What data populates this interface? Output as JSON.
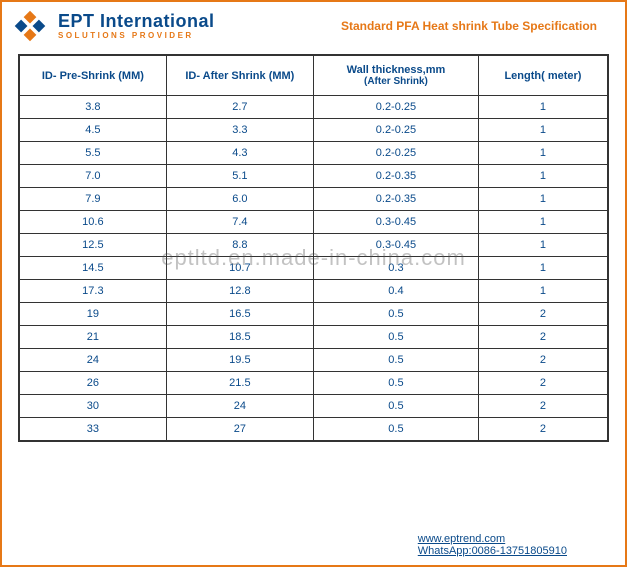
{
  "header": {
    "company_name": "EPT International",
    "tagline": "SOLUTIONS PROVIDER",
    "doc_title": "Standard PFA Heat shrink Tube Specification",
    "logo_colors": {
      "primary": "#e67817",
      "secondary": "#0a4a8a"
    }
  },
  "table": {
    "columns": [
      "ID- Pre-Shrink (MM)",
      "ID- After Shrink (MM)",
      "Wall thickness,mm\n(After Shrink)",
      "Length( meter)"
    ],
    "col_widths_pct": [
      25,
      25,
      28,
      22
    ],
    "rows": [
      [
        "3.8",
        "2.7",
        "0.2-0.25",
        "1"
      ],
      [
        "4.5",
        "3.3",
        "0.2-0.25",
        "1"
      ],
      [
        "5.5",
        "4.3",
        "0.2-0.25",
        "1"
      ],
      [
        "7.0",
        "5.1",
        "0.2-0.35",
        "1"
      ],
      [
        "7.9",
        "6.0",
        "0.2-0.35",
        "1"
      ],
      [
        "10.6",
        "7.4",
        "0.3-0.45",
        "1"
      ],
      [
        "12.5",
        "8.8",
        "0.3-0.45",
        "1"
      ],
      [
        "14.5",
        "10.7",
        "0.3",
        "1"
      ],
      [
        "17.3",
        "12.8",
        "0.4",
        "1"
      ],
      [
        "19",
        "16.5",
        "0.5",
        "2"
      ],
      [
        "21",
        "18.5",
        "0.5",
        "2"
      ],
      [
        "24",
        "19.5",
        "0.5",
        "2"
      ],
      [
        "26",
        "21.5",
        "0.5",
        "2"
      ],
      [
        "30",
        "24",
        "0.5",
        "2"
      ],
      [
        "33",
        "27",
        "0.5",
        "2"
      ]
    ],
    "header_text_color": "#0a4a8a",
    "cell_text_color": "#0a4a8a",
    "border_color": "#333333",
    "header_fontsize": 11,
    "cell_fontsize": 11
  },
  "footer": {
    "website_label": "www.eptrend.com",
    "whatsapp_label": "WhatsApp:0086-13751805910"
  },
  "watermark": "eptltd.en.made-in-china.com",
  "colors": {
    "brand_orange": "#e67817",
    "brand_blue": "#0a4a8a",
    "background": "#ffffff"
  }
}
